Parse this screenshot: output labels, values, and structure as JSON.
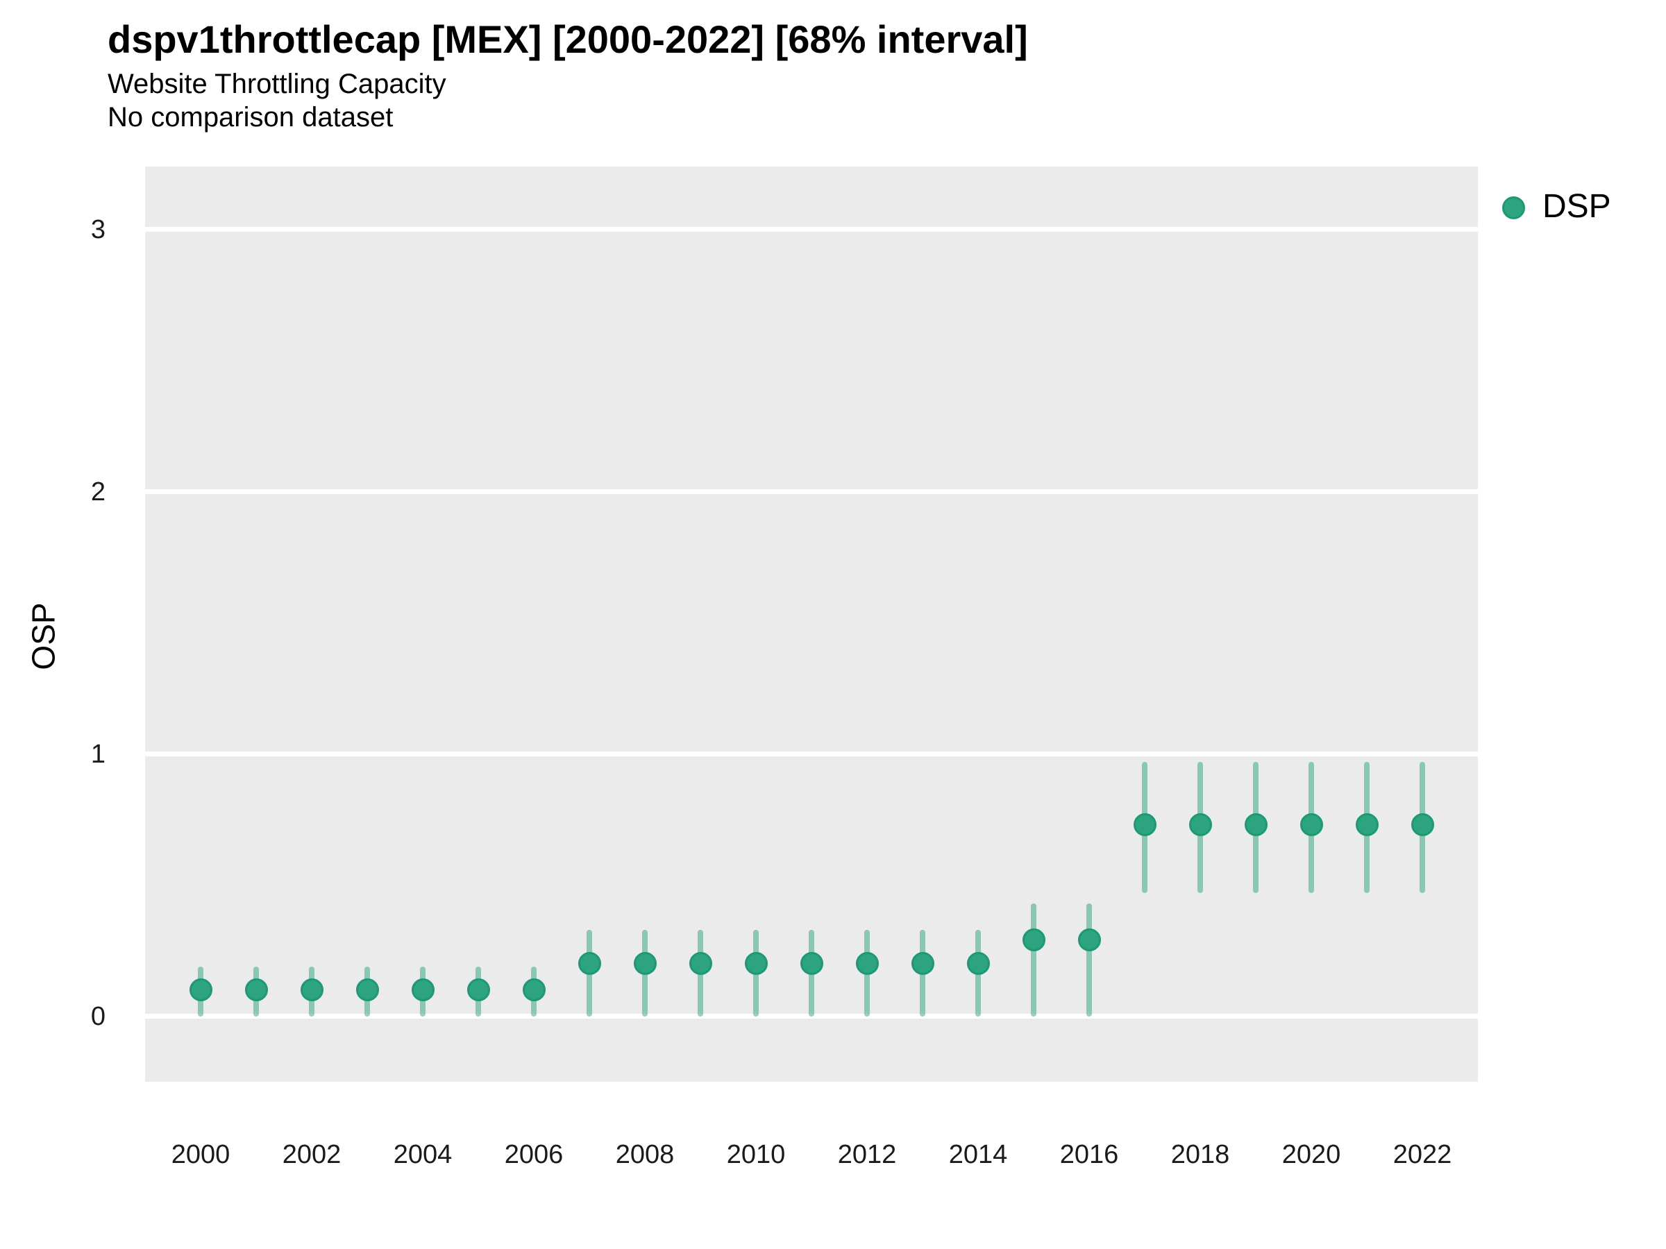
{
  "header": {
    "title": "dspv1throttlecap [MEX] [2000-2022] [68% interval]",
    "subtitle1": "Website Throttling Capacity",
    "subtitle2": "No comparison dataset"
  },
  "axes": {
    "y_label": "OSP"
  },
  "legend": {
    "label": "DSP"
  },
  "colors": {
    "panel_bg": "#EBEBEB",
    "gridline": "#FFFFFF",
    "point_fill": "#2DA380",
    "point_stroke": "#1D9973",
    "interval_line": "rgba(45,163,128,0.5)",
    "tick_text": "#1a1a1a"
  },
  "chart_data": {
    "type": "scatter",
    "title": "dspv1throttlecap [MEX] [2000-2022] [68% interval]",
    "subtitle": [
      "Website Throttling Capacity",
      "No comparison dataset"
    ],
    "ylabel": "OSP",
    "xlabel": "",
    "legend_position": "right",
    "grid": "horizontal-major-only",
    "series": [
      {
        "name": "DSP",
        "interval": "68%",
        "x": [
          2000,
          2001,
          2002,
          2003,
          2004,
          2005,
          2006,
          2007,
          2008,
          2009,
          2010,
          2011,
          2012,
          2013,
          2014,
          2015,
          2016,
          2017,
          2018,
          2019,
          2020,
          2021,
          2022
        ],
        "values": [
          0.1,
          0.1,
          0.1,
          0.1,
          0.1,
          0.1,
          0.1,
          0.2,
          0.2,
          0.2,
          0.2,
          0.2,
          0.2,
          0.2,
          0.2,
          0.29,
          0.29,
          0.73,
          0.73,
          0.73,
          0.73,
          0.73,
          0.73
        ],
        "lower": [
          0.0,
          0.0,
          0.0,
          0.0,
          0.0,
          0.0,
          0.0,
          0.0,
          0.0,
          0.0,
          0.0,
          0.0,
          0.0,
          0.0,
          0.0,
          0.0,
          0.0,
          0.47,
          0.47,
          0.47,
          0.47,
          0.47,
          0.47
        ],
        "upper": [
          0.19,
          0.19,
          0.19,
          0.19,
          0.19,
          0.19,
          0.19,
          0.33,
          0.33,
          0.33,
          0.33,
          0.33,
          0.33,
          0.33,
          0.33,
          0.43,
          0.43,
          0.97,
          0.97,
          0.97,
          0.97,
          0.97,
          0.97
        ]
      }
    ],
    "xticks": [
      2000,
      2002,
      2004,
      2006,
      2008,
      2010,
      2012,
      2014,
      2016,
      2018,
      2020,
      2022
    ],
    "yticks": [
      0,
      1,
      2,
      3
    ],
    "xlim": [
      1999.0,
      2023.0
    ],
    "ylim": [
      -0.25,
      3.24
    ]
  }
}
